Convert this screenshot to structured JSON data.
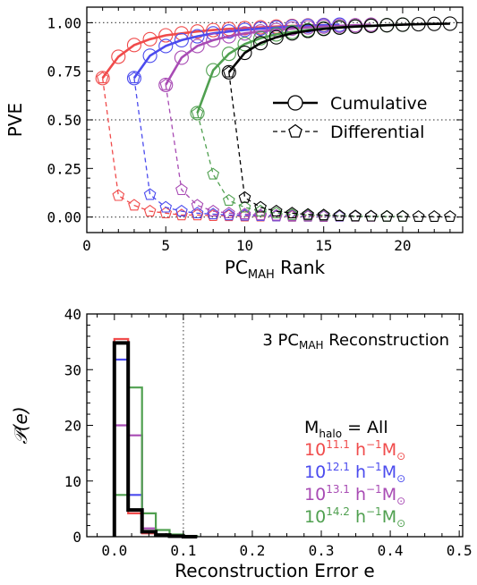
{
  "chart_data": [
    {
      "type": "line",
      "ylabel": "PVE",
      "xlabel_main": "PC",
      "xlabel_sub": "MAH",
      "xlabel_tail": " Rank",
      "xlim": [
        0,
        23.8
      ],
      "ylim": [
        -0.08,
        1.08
      ],
      "xticks": [
        0,
        5,
        10,
        15,
        20
      ],
      "yticks": [
        "0.00",
        "0.25",
        "0.50",
        "0.75",
        "1.00"
      ],
      "ytick_values": [
        0,
        0.25,
        0.5,
        0.75,
        1.0
      ],
      "reference_lines": [
        0,
        0.5,
        1.0
      ],
      "legend": {
        "placement": "right",
        "cumulative": "Cumulative",
        "differential": "Differential"
      },
      "series": [
        {
          "color": "#f04b4b",
          "cumulative": {
            "x": [
              1,
              2,
              3,
              4,
              5,
              6,
              7,
              8,
              9,
              10,
              11,
              12,
              13,
              14,
              15
            ],
            "y": [
              0.715,
              0.825,
              0.885,
              0.915,
              0.935,
              0.945,
              0.955,
              0.962,
              0.968,
              0.972,
              0.976,
              0.98,
              0.983,
              0.986,
              0.988
            ]
          },
          "differential": {
            "x": [
              1,
              2,
              3,
              4,
              5,
              6,
              7,
              8,
              9,
              10,
              11,
              12,
              13,
              14,
              15
            ],
            "y": [
              0.715,
              0.11,
              0.06,
              0.03,
              0.02,
              0.01,
              0.01,
              0.007,
              0.006,
              0.004,
              0.004,
              0.004,
              0.003,
              0.003,
              0.002
            ]
          }
        },
        {
          "color": "#4b4bee",
          "cumulative": {
            "x": [
              3,
              4,
              5,
              6,
              7,
              8,
              9,
              10,
              11,
              12,
              13,
              14,
              15,
              16
            ],
            "y": [
              0.715,
              0.83,
              0.88,
              0.91,
              0.93,
              0.945,
              0.955,
              0.963,
              0.97,
              0.975,
              0.98,
              0.984,
              0.987,
              0.99
            ]
          },
          "differential": {
            "x": [
              3,
              4,
              5,
              6,
              7,
              8,
              9,
              10,
              11,
              12,
              13,
              14,
              15,
              16
            ],
            "y": [
              0.715,
              0.115,
              0.05,
              0.03,
              0.02,
              0.015,
              0.01,
              0.008,
              0.007,
              0.005,
              0.005,
              0.004,
              0.003,
              0.003
            ]
          }
        },
        {
          "color": "#a84bb4",
          "cumulative": {
            "x": [
              5,
              6,
              7,
              8,
              9,
              10,
              11,
              12,
              13,
              14,
              15,
              16,
              17,
              18
            ],
            "y": [
              0.68,
              0.82,
              0.88,
              0.91,
              0.93,
              0.945,
              0.955,
              0.963,
              0.97,
              0.976,
              0.98,
              0.984,
              0.987,
              0.99
            ]
          },
          "differential": {
            "x": [
              5,
              6,
              7,
              8,
              9,
              10,
              11,
              12,
              13,
              14,
              15,
              16,
              17,
              18
            ],
            "y": [
              0.68,
              0.14,
              0.06,
              0.03,
              0.02,
              0.015,
              0.01,
              0.008,
              0.007,
              0.006,
              0.004,
              0.004,
              0.003,
              0.003
            ]
          }
        },
        {
          "color": "#50a050",
          "cumulative": {
            "x": [
              7,
              8,
              9,
              10,
              11,
              12,
              13,
              14,
              15,
              16,
              17,
              18,
              19,
              20
            ],
            "y": [
              0.535,
              0.755,
              0.84,
              0.89,
              0.92,
              0.94,
              0.952,
              0.962,
              0.97,
              0.976,
              0.98,
              0.984,
              0.987,
              0.99
            ]
          },
          "differential": {
            "x": [
              7,
              8,
              9,
              10,
              11,
              12,
              13,
              14,
              15,
              16,
              17,
              18,
              19,
              20
            ],
            "y": [
              0.535,
              0.22,
              0.085,
              0.05,
              0.03,
              0.02,
              0.012,
              0.01,
              0.008,
              0.006,
              0.004,
              0.004,
              0.003,
              0.003
            ]
          }
        },
        {
          "color": "#000000",
          "cumulative": {
            "x": [
              9,
              10,
              11,
              12,
              13,
              14,
              15,
              16,
              17,
              18,
              19,
              20,
              21,
              22,
              23
            ],
            "y": [
              0.745,
              0.845,
              0.895,
              0.925,
              0.945,
              0.958,
              0.968,
              0.975,
              0.98,
              0.984,
              0.987,
              0.99,
              0.992,
              0.994,
              0.995
            ]
          },
          "differential": {
            "x": [
              9,
              10,
              11,
              12,
              13,
              14,
              15,
              16,
              17,
              18,
              19,
              20,
              21,
              22,
              23
            ],
            "y": [
              0.745,
              0.1,
              0.05,
              0.03,
              0.02,
              0.013,
              0.01,
              0.007,
              0.005,
              0.004,
              0.003,
              0.003,
              0.002,
              0.002,
              0.002
            ]
          }
        }
      ]
    },
    {
      "type": "bar",
      "subtype": "step-histogram",
      "ylabel": "𝒫(e)",
      "xlabel": "Reconstruction Error e",
      "xlim": [
        -0.04,
        0.505
      ],
      "ylim": [
        0,
        40
      ],
      "xticks": [
        "0.0",
        "0.1",
        "0.2",
        "0.3",
        "0.4",
        "0.5"
      ],
      "xtick_values": [
        0,
        0.1,
        0.2,
        0.3,
        0.4,
        0.5
      ],
      "yticks": [
        "0",
        "10",
        "20",
        "30",
        "40"
      ],
      "ytick_values": [
        0,
        10,
        20,
        30,
        40
      ],
      "vline": 0.1,
      "annotation_main": "3 PC",
      "annotation_sub": "MAH",
      "annotation_tail": " Reconstruction",
      "bin_edges": [
        0,
        0.02,
        0.04,
        0.06,
        0.08,
        0.1,
        0.12
      ],
      "legend": {
        "all": {
          "main": "M",
          "sub": "halo",
          "tail": " = All"
        },
        "entries": [
          {
            "base": "10",
            "exp": "11.1",
            "unit": " h",
            "uexp": "−1",
            "m": "M",
            "sun": "⊙"
          },
          {
            "base": "10",
            "exp": "12.1",
            "unit": " h",
            "uexp": "−1",
            "m": "M",
            "sun": "⊙"
          },
          {
            "base": "10",
            "exp": "13.1",
            "unit": " h",
            "uexp": "−1",
            "m": "M",
            "sun": "⊙"
          },
          {
            "base": "10",
            "exp": "14.2",
            "unit": " h",
            "uexp": "−1",
            "m": "M",
            "sun": "⊙"
          }
        ]
      },
      "series": [
        {
          "color": "#f04b4b",
          "values": [
            35.5,
            4.2,
            0.6,
            0.2,
            0,
            0
          ]
        },
        {
          "color": "#4b4bee",
          "values": [
            31.8,
            7.5,
            0.8,
            0.2,
            0,
            0
          ]
        },
        {
          "color": "#a84bb4",
          "values": [
            20,
            18.2,
            1.5,
            0.3,
            0.1,
            0
          ]
        },
        {
          "color": "#50a050",
          "values": [
            7.5,
            26.8,
            4.2,
            1.2,
            0.4,
            0.1
          ]
        },
        {
          "color": "#000000",
          "values": [
            34.8,
            4.8,
            0.9,
            0.3,
            0.1,
            0
          ]
        }
      ]
    }
  ]
}
